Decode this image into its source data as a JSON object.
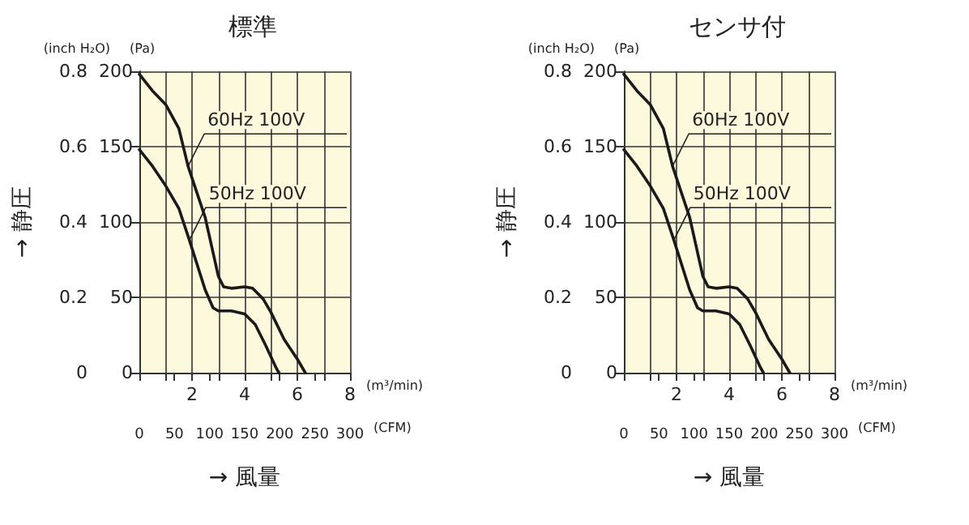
{
  "chart_data": [
    {
      "type": "line",
      "title": "標準",
      "ylabel": "(Pa)",
      "y2label": "(inch H₂O)",
      "xlabel": "(m³/min)",
      "x2label": "(CFM)",
      "annotations": [
        "→ 静圧",
        "→ 風量"
      ],
      "series": [
        {
          "name": "60Hz 100V",
          "color": "#1a1a1a",
          "x": [
            0,
            0.5,
            1,
            1.5,
            1.85,
            2.5,
            3,
            3.2,
            3.5,
            4,
            4.3,
            4.7,
            5,
            5.5,
            6,
            6.3
          ],
          "values": [
            198,
            187,
            178,
            162,
            137,
            103,
            64,
            57,
            56,
            57,
            56,
            49,
            40,
            22,
            9,
            0
          ]
        },
        {
          "name": "50Hz 100V",
          "color": "#1a1a1a",
          "x": [
            0,
            0.5,
            1,
            1.5,
            1.9,
            2.5,
            2.8,
            3,
            3.5,
            4,
            4.4,
            4.8,
            5.2,
            5.3
          ],
          "values": [
            148,
            137,
            124,
            109,
            88,
            55,
            43,
            41,
            41,
            39,
            32,
            18,
            3,
            0
          ]
        }
      ],
      "xlim": [
        0,
        8
      ],
      "xticks": [
        {
          "value": 0,
          "label": null
        },
        {
          "value": 1,
          "label": null
        },
        2,
        {
          "value": 3,
          "label": null
        },
        4,
        {
          "value": 5,
          "label": null
        },
        6,
        {
          "value": 7,
          "label": null
        },
        8
      ],
      "ylim": [
        0,
        200
      ],
      "yticks": [
        0,
        50,
        100,
        150,
        200
      ],
      "y2lim": [
        0,
        0.8
      ],
      "y2ticks": [
        0,
        0.2,
        0.4,
        0.6,
        0.8
      ],
      "x2lim": [
        0,
        300
      ],
      "x2ticks": [
        0,
        50,
        100,
        150,
        200,
        250,
        300
      ],
      "grid": true,
      "legend": false,
      "marker": "none",
      "line_style": "solid"
    },
    {
      "type": "line",
      "title": "センサ付",
      "ylabel": "(Pa)",
      "y2label": "(inch H₂O)",
      "xlabel": "(m³/min)",
      "x2label": "(CFM)",
      "annotations": [
        "→ 静圧",
        "→ 風量"
      ],
      "series": [
        {
          "name": "60Hz 100V",
          "color": "#1a1a1a",
          "x": [
            0,
            0.5,
            1,
            1.5,
            1.85,
            2.5,
            3,
            3.2,
            3.5,
            4,
            4.3,
            4.7,
            5,
            5.5,
            6,
            6.3
          ],
          "values": [
            198,
            187,
            178,
            162,
            137,
            103,
            64,
            57,
            56,
            57,
            56,
            49,
            40,
            22,
            9,
            0
          ]
        },
        {
          "name": "50Hz 100V",
          "color": "#1a1a1a",
          "x": [
            0,
            0.5,
            1,
            1.5,
            1.9,
            2.5,
            2.8,
            3,
            3.5,
            4,
            4.4,
            4.8,
            5.2,
            5.3
          ],
          "values": [
            148,
            137,
            124,
            109,
            88,
            55,
            43,
            41,
            41,
            39,
            32,
            18,
            3,
            0
          ]
        }
      ],
      "xlim": [
        0,
        8
      ],
      "xticks": [
        {
          "value": 0,
          "label": null
        },
        {
          "value": 1,
          "label": null
        },
        2,
        {
          "value": 3,
          "label": null
        },
        4,
        {
          "value": 5,
          "label": null
        },
        6,
        {
          "value": 7,
          "label": null
        },
        8
      ],
      "ylim": [
        0,
        200
      ],
      "yticks": [
        0,
        50,
        100,
        150,
        200
      ],
      "y2lim": [
        0,
        0.8
      ],
      "y2ticks": [
        0,
        0.2,
        0.4,
        0.6,
        0.8
      ],
      "x2lim": [
        0,
        300
      ],
      "x2ticks": [
        0,
        50,
        100,
        150,
        200,
        250,
        300
      ],
      "grid": true,
      "legend": false,
      "marker": "none",
      "line_style": "solid"
    }
  ]
}
